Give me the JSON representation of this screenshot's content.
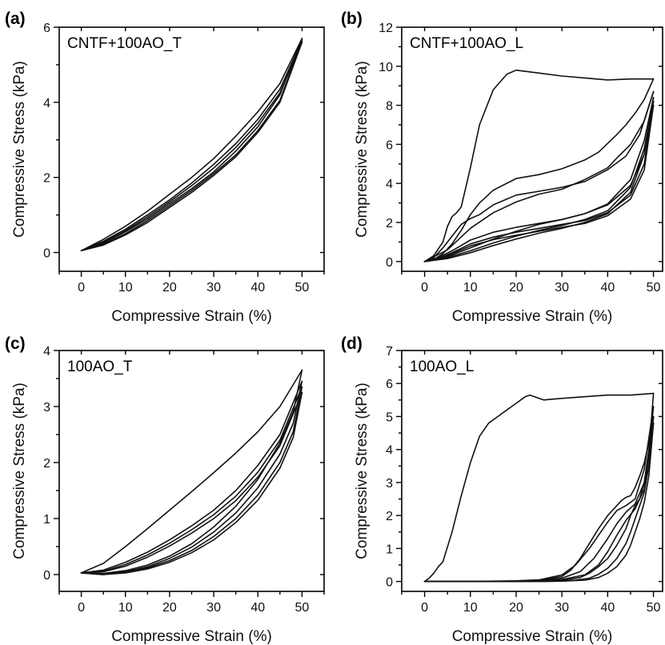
{
  "chart_data": [
    {
      "panel_label": "(a)",
      "inset_label": "CNTF+100AO_T",
      "type": "line",
      "xlabel": "Compressive Strain (%)",
      "ylabel": "Compressive Stress (kPa)",
      "xlim": [
        -5,
        55
      ],
      "ylim": [
        -0.5,
        6
      ],
      "xticks": [
        0,
        10,
        20,
        30,
        40,
        50
      ],
      "yticks": [
        0,
        2,
        4,
        6
      ],
      "series": [
        {
          "x": [
            0,
            5,
            10,
            15,
            20,
            25,
            30,
            35,
            40,
            45,
            50
          ],
          "y": [
            0.05,
            0.25,
            0.55,
            0.9,
            1.3,
            1.7,
            2.15,
            2.7,
            3.35,
            4.2,
            5.7
          ]
        },
        {
          "x": [
            50,
            45,
            40,
            35,
            30,
            25,
            20,
            15,
            10,
            5,
            0
          ],
          "y": [
            5.7,
            4.5,
            3.75,
            3.1,
            2.5,
            2.0,
            1.55,
            1.1,
            0.7,
            0.35,
            0.05
          ]
        },
        {
          "x": [
            0,
            5,
            10,
            15,
            20,
            25,
            30,
            35,
            40,
            45,
            50
          ],
          "y": [
            0.05,
            0.22,
            0.5,
            0.85,
            1.25,
            1.65,
            2.1,
            2.6,
            3.25,
            4.05,
            5.65
          ]
        },
        {
          "x": [
            50,
            45,
            40,
            35,
            30,
            25,
            20,
            15,
            10,
            5,
            0
          ],
          "y": [
            5.65,
            4.35,
            3.55,
            2.9,
            2.35,
            1.85,
            1.4,
            1.0,
            0.62,
            0.3,
            0.05
          ]
        },
        {
          "x": [
            0,
            5,
            10,
            15,
            20,
            25,
            30,
            35,
            40,
            45,
            50
          ],
          "y": [
            0.05,
            0.2,
            0.47,
            0.8,
            1.2,
            1.6,
            2.05,
            2.55,
            3.2,
            4.0,
            5.6
          ]
        },
        {
          "x": [
            50,
            45,
            40,
            35,
            30,
            25,
            20,
            15,
            10,
            5,
            0
          ],
          "y": [
            5.6,
            4.25,
            3.45,
            2.8,
            2.25,
            1.78,
            1.35,
            0.95,
            0.58,
            0.27,
            0.05
          ]
        }
      ]
    },
    {
      "panel_label": "(b)",
      "inset_label": "CNTF+100AO_L",
      "type": "line",
      "xlabel": "Compressive Strain (%)",
      "ylabel": "Compressive Stress (kPa)",
      "xlim": [
        -5,
        52
      ],
      "ylim": [
        -0.5,
        12
      ],
      "xticks": [
        0,
        10,
        20,
        30,
        40,
        50
      ],
      "yticks": [
        0,
        2,
        4,
        6,
        8,
        10,
        12
      ],
      "series": [
        {
          "x": [
            0,
            2,
            4,
            5,
            6,
            7,
            8,
            10,
            12,
            15,
            18,
            20,
            25,
            30,
            35,
            40,
            45,
            50
          ],
          "y": [
            0,
            0.3,
            1.0,
            1.8,
            2.3,
            2.5,
            2.8,
            4.8,
            7.0,
            8.8,
            9.6,
            9.8,
            9.65,
            9.5,
            9.4,
            9.3,
            9.35,
            9.35
          ]
        },
        {
          "x": [
            50,
            48,
            46,
            44,
            42,
            40,
            38,
            35,
            30,
            25,
            20,
            15,
            12,
            10,
            8,
            6,
            4,
            2,
            0
          ],
          "y": [
            9.35,
            8.3,
            7.6,
            7.0,
            6.5,
            6.05,
            5.6,
            5.2,
            4.75,
            4.45,
            4.25,
            3.65,
            3.0,
            2.4,
            1.6,
            0.9,
            0.4,
            0.1,
            0
          ]
        },
        {
          "x": [
            0,
            2,
            4,
            6,
            8,
            10,
            12,
            15,
            20,
            25,
            30,
            35,
            40,
            44,
            47,
            50
          ],
          "y": [
            0,
            0.2,
            0.7,
            1.3,
            1.9,
            2.2,
            2.4,
            2.9,
            3.4,
            3.6,
            3.8,
            4.1,
            4.7,
            5.4,
            6.5,
            8.7
          ]
        },
        {
          "x": [
            50,
            48,
            45,
            42,
            40,
            35,
            30,
            25,
            20,
            15,
            10,
            5,
            0
          ],
          "y": [
            8.7,
            7.2,
            6.0,
            5.3,
            4.8,
            4.2,
            3.7,
            3.45,
            3.05,
            2.5,
            1.7,
            0.6,
            0
          ]
        },
        {
          "x": [
            0,
            3,
            6,
            10,
            15,
            20,
            25,
            30,
            35,
            40,
            45,
            48,
            50
          ],
          "y": [
            0,
            0.2,
            0.55,
            1.1,
            1.5,
            1.75,
            1.95,
            2.15,
            2.45,
            2.9,
            3.9,
            5.5,
            8.4
          ]
        },
        {
          "x": [
            50,
            48,
            45,
            40,
            35,
            30,
            25,
            20,
            15,
            10,
            5,
            0
          ],
          "y": [
            8.4,
            6.2,
            4.2,
            2.95,
            2.45,
            2.15,
            1.9,
            1.55,
            1.15,
            0.7,
            0.25,
            0
          ]
        },
        {
          "x": [
            0,
            3,
            6,
            10,
            15,
            20,
            25,
            30,
            35,
            40,
            45,
            48,
            50
          ],
          "y": [
            0,
            0.15,
            0.45,
            0.9,
            1.25,
            1.5,
            1.7,
            1.9,
            2.1,
            2.5,
            3.4,
            5.0,
            8.2
          ]
        },
        {
          "x": [
            50,
            48,
            45,
            40,
            35,
            30,
            25,
            20,
            15,
            10,
            5,
            0
          ],
          "y": [
            8.2,
            5.8,
            3.8,
            2.6,
            2.15,
            1.85,
            1.6,
            1.3,
            0.95,
            0.55,
            0.2,
            0
          ]
        },
        {
          "x": [
            0,
            3,
            6,
            10,
            15,
            20,
            25,
            30,
            35,
            40,
            45,
            48,
            50
          ],
          "y": [
            0,
            0.12,
            0.4,
            0.8,
            1.12,
            1.35,
            1.55,
            1.75,
            1.95,
            2.35,
            3.2,
            4.7,
            8.0
          ]
        },
        {
          "x": [
            50,
            48,
            45,
            40,
            35,
            30,
            25,
            20,
            15,
            10,
            5,
            0
          ],
          "y": [
            8.0,
            5.5,
            3.55,
            2.45,
            2.0,
            1.7,
            1.45,
            1.15,
            0.82,
            0.45,
            0.15,
            0
          ]
        }
      ]
    },
    {
      "panel_label": "(c)",
      "inset_label": "100AO_T",
      "type": "line",
      "xlabel": "Compressive Strain (%)",
      "ylabel": "Compressive Stress (kPa)",
      "xlim": [
        -5,
        55
      ],
      "ylim": [
        -0.3,
        4
      ],
      "xticks": [
        0,
        10,
        20,
        30,
        40,
        50
      ],
      "yticks": [
        0,
        1,
        2,
        3,
        4
      ],
      "series": [
        {
          "x": [
            0,
            5,
            10,
            15,
            20,
            25,
            30,
            35,
            40,
            45,
            50
          ],
          "y": [
            0.03,
            0.2,
            0.5,
            0.82,
            1.15,
            1.48,
            1.82,
            2.17,
            2.55,
            3.0,
            3.65
          ]
        },
        {
          "x": [
            50,
            48,
            45,
            40,
            35,
            30,
            25,
            20,
            15,
            10,
            5,
            0
          ],
          "y": [
            3.65,
            2.9,
            2.35,
            1.7,
            1.22,
            0.85,
            0.55,
            0.33,
            0.17,
            0.07,
            0.02,
            0.03
          ]
        },
        {
          "x": [
            0,
            5,
            10,
            15,
            20,
            25,
            30,
            35,
            40,
            45,
            50
          ],
          "y": [
            0.03,
            0.08,
            0.22,
            0.4,
            0.62,
            0.87,
            1.15,
            1.5,
            1.95,
            2.5,
            3.45
          ]
        },
        {
          "x": [
            50,
            48,
            45,
            40,
            35,
            30,
            25,
            20,
            15,
            10,
            5,
            0
          ],
          "y": [
            3.45,
            2.7,
            2.15,
            1.55,
            1.1,
            0.76,
            0.49,
            0.29,
            0.14,
            0.05,
            0.01,
            0.03
          ]
        },
        {
          "x": [
            0,
            5,
            10,
            15,
            20,
            25,
            30,
            35,
            40,
            45,
            50
          ],
          "y": [
            0.03,
            0.06,
            0.18,
            0.35,
            0.56,
            0.8,
            1.07,
            1.4,
            1.83,
            2.4,
            3.35
          ]
        },
        {
          "x": [
            50,
            48,
            45,
            40,
            35,
            30,
            25,
            20,
            15,
            10,
            5,
            0
          ],
          "y": [
            3.35,
            2.55,
            2.0,
            1.42,
            1.0,
            0.68,
            0.43,
            0.25,
            0.12,
            0.04,
            0.0,
            0.03
          ]
        },
        {
          "x": [
            0,
            5,
            10,
            15,
            20,
            25,
            30,
            35,
            40,
            45,
            50
          ],
          "y": [
            0.03,
            0.05,
            0.15,
            0.31,
            0.51,
            0.74,
            1.0,
            1.32,
            1.74,
            2.3,
            3.25
          ]
        },
        {
          "x": [
            50,
            48,
            45,
            40,
            35,
            30,
            25,
            20,
            15,
            10,
            5,
            0
          ],
          "y": [
            3.25,
            2.45,
            1.9,
            1.33,
            0.93,
            0.62,
            0.39,
            0.22,
            0.1,
            0.03,
            0.0,
            0.03
          ]
        }
      ]
    },
    {
      "panel_label": "(d)",
      "inset_label": "100AO_L",
      "type": "line",
      "xlabel": "Compressive Strain (%)",
      "ylabel": "Compressive Stress (kPa)",
      "xlim": [
        -5,
        52
      ],
      "ylim": [
        -0.3,
        7
      ],
      "xticks": [
        0,
        10,
        20,
        30,
        40,
        50
      ],
      "yticks": [
        0,
        1,
        2,
        3,
        4,
        5,
        6,
        7
      ],
      "series": [
        {
          "x": [
            0,
            1,
            2,
            3,
            4,
            6,
            8,
            10,
            12,
            14,
            16,
            18,
            20,
            22,
            23,
            24,
            26,
            30,
            35,
            40,
            45,
            50
          ],
          "y": [
            0,
            0.1,
            0.25,
            0.45,
            0.6,
            1.5,
            2.6,
            3.6,
            4.4,
            4.8,
            5.0,
            5.2,
            5.4,
            5.6,
            5.65,
            5.6,
            5.5,
            5.55,
            5.6,
            5.65,
            5.65,
            5.7
          ]
        },
        {
          "x": [
            50,
            49.5,
            49,
            48,
            47,
            46,
            45,
            44,
            43,
            42,
            40,
            38,
            36,
            34,
            32,
            30,
            25,
            20,
            15,
            10,
            5,
            0
          ],
          "y": [
            5.7,
            4.8,
            4.2,
            3.6,
            3.2,
            2.85,
            2.6,
            2.55,
            2.45,
            2.3,
            2.0,
            1.6,
            1.15,
            0.7,
            0.35,
            0.15,
            0.04,
            0.01,
            0,
            0,
            0,
            0
          ]
        },
        {
          "x": [
            0,
            10,
            20,
            25,
            30,
            33,
            36,
            38,
            40,
            42,
            44,
            46,
            48,
            50
          ],
          "y": [
            0,
            0,
            0.02,
            0.05,
            0.2,
            0.5,
            1.0,
            1.4,
            1.8,
            2.15,
            2.3,
            2.5,
            3.4,
            5.3
          ]
        },
        {
          "x": [
            50,
            49,
            48,
            47,
            46,
            45,
            44,
            42,
            40,
            38,
            36,
            34,
            30,
            25,
            20,
            10,
            0
          ],
          "y": [
            5.3,
            3.9,
            3.0,
            2.5,
            2.3,
            2.0,
            1.6,
            1.1,
            0.7,
            0.45,
            0.25,
            0.12,
            0.03,
            0.01,
            0,
            0,
            0
          ]
        },
        {
          "x": [
            0,
            10,
            20,
            25,
            30,
            34,
            37,
            40,
            42,
            44,
            46,
            48,
            50
          ],
          "y": [
            0,
            0,
            0.01,
            0.03,
            0.1,
            0.3,
            0.7,
            1.3,
            1.75,
            2.1,
            2.35,
            3.0,
            5.0
          ]
        },
        {
          "x": [
            50,
            49,
            48,
            47,
            46,
            45,
            44,
            42,
            40,
            38,
            36,
            33,
            30,
            25,
            20,
            10,
            0
          ],
          "y": [
            5.0,
            3.5,
            2.7,
            2.3,
            1.9,
            1.5,
            1.15,
            0.7,
            0.4,
            0.22,
            0.1,
            0.04,
            0.01,
            0,
            0,
            0,
            0
          ]
        },
        {
          "x": [
            0,
            10,
            20,
            25,
            30,
            35,
            38,
            40,
            42,
            44,
            46,
            48,
            50
          ],
          "y": [
            0,
            0,
            0,
            0.02,
            0.06,
            0.2,
            0.5,
            0.9,
            1.4,
            1.85,
            2.2,
            2.8,
            4.8
          ]
        },
        {
          "x": [
            50,
            49,
            48,
            47,
            46,
            45,
            44,
            42,
            40,
            38,
            35,
            30,
            25,
            20,
            10,
            0
          ],
          "y": [
            4.8,
            3.2,
            2.4,
            1.9,
            1.5,
            1.1,
            0.8,
            0.45,
            0.25,
            0.12,
            0.04,
            0.01,
            0,
            0,
            0,
            0
          ]
        }
      ]
    }
  ]
}
